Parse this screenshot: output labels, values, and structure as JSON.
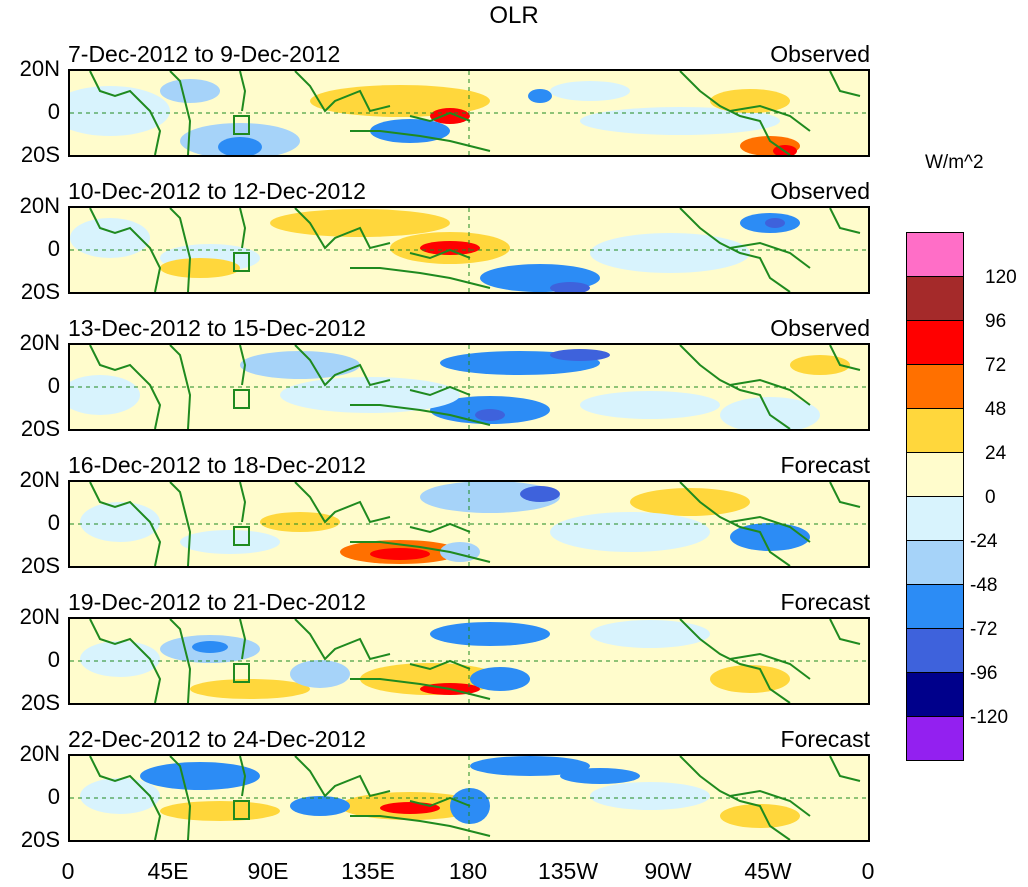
{
  "title": "OLR",
  "units": "W/m^2",
  "y_labels": [
    "20N",
    "0",
    "20S"
  ],
  "x_labels": [
    "0",
    "45E",
    "90E",
    "135E",
    "180",
    "135W",
    "90W",
    "45W",
    "0"
  ],
  "panels": [
    {
      "dates": "7-Dec-2012 to 9-Dec-2012",
      "type": "Observed"
    },
    {
      "dates": "10-Dec-2012 to 12-Dec-2012",
      "type": "Observed"
    },
    {
      "dates": "13-Dec-2012 to 15-Dec-2012",
      "type": "Observed"
    },
    {
      "dates": "16-Dec-2012 to 18-Dec-2012",
      "type": "Forecast"
    },
    {
      "dates": "19-Dec-2012 to 21-Dec-2012",
      "type": "Forecast"
    },
    {
      "dates": "22-Dec-2012 to 24-Dec-2012",
      "type": "Forecast"
    }
  ],
  "colorbar": {
    "colors": [
      "#ff6ec7",
      "#a52a2a",
      "#ff0000",
      "#ff7000",
      "#ffd73c",
      "#fffccc",
      "#d8f3fd",
      "#a6d3f9",
      "#2c8cf5",
      "#3e62dc",
      "#00008b",
      "#9320f0"
    ],
    "labels": [
      "120",
      "96",
      "72",
      "48",
      "24",
      "0",
      "-24",
      "-48",
      "-72",
      "-96",
      "-120"
    ]
  }
}
